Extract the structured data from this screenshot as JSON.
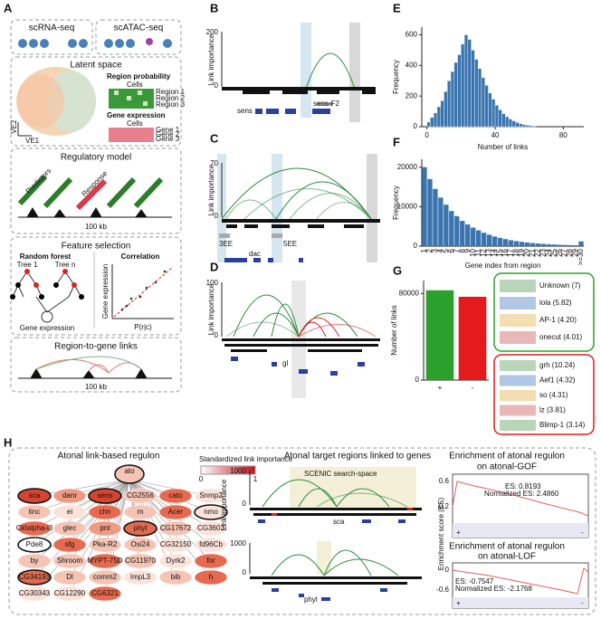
{
  "figure": {
    "A": {
      "label": "A",
      "omics": [
        "scRNA-seq",
        "scATAC-seq"
      ],
      "latent": {
        "title": "Latent space",
        "region_probability": "Region probability",
        "cells": "Cells",
        "regions": [
          "Region 1",
          "Region 2",
          "Region 3"
        ],
        "gene_expression": "Gene expression",
        "cells_2": "Cells",
        "genes": [
          "Gene 1",
          "Gene 2",
          "Gene 3"
        ],
        "axes": [
          "VE2",
          "VE1"
        ]
      },
      "regulatory": {
        "title": "Regulatory model",
        "predictors": "Predictors",
        "response": "Response",
        "scale": "100 kb"
      },
      "feature": {
        "title": "Feature selection",
        "random_forest": "Random forest",
        "trees": [
          "Tree 1",
          "Tree n"
        ],
        "correlation": "Correlation",
        "y": "Gene expression",
        "x": "P(r|c)",
        "target": "Gene expression"
      },
      "links": {
        "title": "Region-to-gene links",
        "scale": "100 kb"
      }
    },
    "B": {
      "label": "B",
      "ylabel": "Link importance",
      "ticks": [
        "200",
        "0"
      ],
      "genes": [
        "sens-F2",
        "sens"
      ]
    },
    "C": {
      "label": "C",
      "ylabel": "Link importance",
      "ticks": [
        "70",
        "0"
      ],
      "genes": [
        "3EE",
        "5EE",
        "dac"
      ]
    },
    "D": {
      "label": "D",
      "ylabel": "Link importance",
      "ticks": [
        "100",
        "0"
      ],
      "genes": [
        "gl"
      ]
    },
    "E": {
      "label": "E"
    },
    "F": {
      "label": "F"
    },
    "G": {
      "label": "G",
      "motifs_up": [
        "Unknown (7)",
        "lola (5.82)",
        "AP-1 (4.20)",
        "onecut (4.01)"
      ],
      "motifs_down": [
        "grh (10.24)",
        "Aef1 (4.32)",
        "so (4.31)",
        "lz (3.81)",
        "Blimp-1 (3.14)"
      ]
    },
    "H": {
      "label": "H",
      "regulon": {
        "title": "Atonal link-based regulon",
        "tf": "ato",
        "legend": "Standardized link importance",
        "legend_ticks": [
          "0",
          "1"
        ],
        "nodes": [
          {
            "name": "sca",
            "color": "#d6452f",
            "outline": true
          },
          {
            "name": "danr",
            "color": "#ef9a82"
          },
          {
            "name": "sens",
            "color": "#d6452f",
            "outline": true
          },
          {
            "name": "CG2556",
            "color": "#f5c4b4"
          },
          {
            "name": "cato",
            "color": "#e56a4f"
          },
          {
            "name": "Snmp2",
            "color": "#fbe3da"
          },
          {
            "name": "tinc",
            "color": "#f5c4b4"
          },
          {
            "name": "ei",
            "color": "#fbe3da"
          },
          {
            "name": "chn",
            "color": "#e56a4f"
          },
          {
            "name": "rn",
            "color": "#f5c4b4"
          },
          {
            "name": "Acer",
            "color": "#e56a4f"
          },
          {
            "name": "nmo",
            "color": "#fbe3da",
            "outline": true
          },
          {
            "name": "CkIalpha-i3",
            "color": "#e56a4f"
          },
          {
            "name": "glec",
            "color": "#f5c4b4"
          },
          {
            "name": "pnt",
            "color": "#ef9a82"
          },
          {
            "name": "phyl",
            "color": "#e56a4f",
            "outline": true
          },
          {
            "name": "CG17672",
            "color": "#f5c4b4"
          },
          {
            "name": "CG3603",
            "color": "#fbe3da"
          },
          {
            "name": "Pde8",
            "color": "#ffffff",
            "outline": true
          },
          {
            "name": "sfg",
            "color": "#e56a4f"
          },
          {
            "name": "Pka-R2",
            "color": "#f5c4b4"
          },
          {
            "name": "Osi24",
            "color": "#f5c4b4"
          },
          {
            "name": "CG32150",
            "color": "#fbe3da"
          },
          {
            "name": "fd96Cb",
            "color": "#fbe3da"
          },
          {
            "name": "by",
            "color": "#f5c4b4"
          },
          {
            "name": "Shroom",
            "color": "#f5c4b4"
          },
          {
            "name": "MYPT-75D",
            "color": "#e56a4f"
          },
          {
            "name": "CG11970",
            "color": "#f5c4b4"
          },
          {
            "name": "Dyrk2",
            "color": "#fbe3da"
          },
          {
            "name": "for",
            "color": "#e56a4f"
          },
          {
            "name": "CG34193",
            "color": "#e56a4f",
            "outline": true
          },
          {
            "name": "Dl",
            "color": "#f5c4b4"
          },
          {
            "name": "comm2",
            "color": "#f5c4b4"
          },
          {
            "name": "ImpL3",
            "color": "#fbe3da"
          },
          {
            "name": "bib",
            "color": "#f5c4b4"
          },
          {
            "name": "h",
            "color": "#e56a4f"
          },
          {
            "name": "CG30343",
            "color": "#fbe3da"
          },
          {
            "name": "CG12290",
            "color": "#fbe3da"
          },
          {
            "name": "CG6321",
            "color": "#e56a4f"
          }
        ]
      },
      "targets": {
        "title": "Atonal target regions linked to genes",
        "ylabel": "Link importance",
        "ticks_top": [
          "1000",
          "0"
        ],
        "ticks_bottom": [
          "1000",
          "0"
        ],
        "search_space": "SCENIC search-space",
        "genes": [
          "sca",
          "phyl"
        ]
      },
      "gof": {
        "title": "Enrichment of atonal regulon",
        "subtitle": "on atonal-GOF",
        "ylabel": "Enrichment score (ES)",
        "ticks": [
          "0.6",
          "0.2"
        ],
        "es": "ES: 0.8193",
        "nes": "Normalized ES: 2.4860",
        "ends": [
          "+",
          "-"
        ]
      },
      "lof": {
        "title": "Enrichment of atonal regulon",
        "subtitle": "on atonal-LOF",
        "ticks": [
          "0",
          "-0.6"
        ],
        "es": "ES: -0.7547",
        "nes": "Normalized ES: -2.1768",
        "ends": [
          "+",
          "-"
        ]
      }
    }
  },
  "chart_data": [
    {
      "type": "histogram",
      "xlabel": "Number of links",
      "ylabel": "Frequency",
      "color": "#3b75af",
      "bins": [
        0,
        2,
        4,
        6,
        8,
        10,
        12,
        14,
        16,
        18,
        20,
        22,
        24,
        26,
        28,
        30,
        32,
        34,
        36,
        38,
        40,
        42,
        44,
        46,
        48,
        50,
        52,
        54,
        56,
        58,
        60,
        62,
        64
      ],
      "values": [
        30,
        60,
        90,
        130,
        170,
        230,
        300,
        360,
        420,
        470,
        540,
        600,
        570,
        500,
        440,
        380,
        320,
        270,
        220,
        180,
        140,
        110,
        85,
        65,
        50,
        38,
        28,
        20,
        14,
        10,
        7,
        5
      ],
      "xlim": [
        -3,
        92
      ],
      "xticks": [
        0,
        40,
        80
      ],
      "ylim": [
        0,
        650
      ],
      "yticks": [
        0,
        200,
        400,
        600
      ]
    },
    {
      "type": "bar",
      "xlabel": "Gene index from region",
      "ylabel": "Frequency",
      "color": "#3b75af",
      "categories": [
        "1",
        "2",
        "3",
        "4",
        "5",
        "6",
        "7",
        "8",
        "9",
        "10",
        "11",
        "12",
        "13",
        "14",
        "15",
        "16",
        "17",
        "18",
        "19",
        "20",
        "21",
        "22",
        "23",
        "24",
        "25",
        "26",
        "27",
        "28",
        "29",
        ">=30"
      ],
      "values": [
        20000,
        17000,
        14500,
        12300,
        10500,
        8900,
        7600,
        6400,
        5500,
        4700,
        4000,
        3400,
        2900,
        2450,
        2100,
        1780,
        1510,
        1290,
        1100,
        930,
        790,
        670,
        570,
        490,
        420,
        350,
        300,
        260,
        220,
        1200
      ],
      "ylim": [
        0,
        22000
      ],
      "yticks": [
        0,
        10000,
        20000
      ]
    },
    {
      "type": "bar",
      "ylabel": "Number of links",
      "categories": [
        "+",
        "-"
      ],
      "colors": [
        "#2ca02c",
        "#e41a1c"
      ],
      "values": [
        83000,
        77000
      ],
      "ylim": [
        0,
        92000
      ],
      "yticks": [
        0,
        80000
      ]
    }
  ]
}
